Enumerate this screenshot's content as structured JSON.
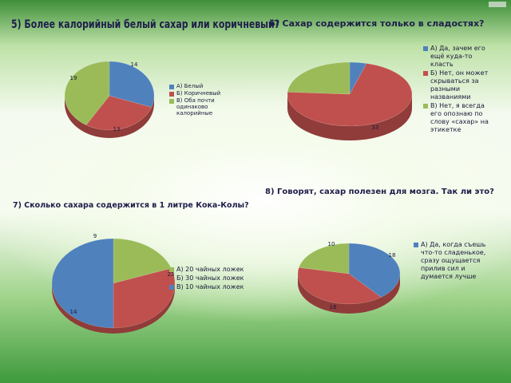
{
  "headings": {
    "q5": "5) Более калорийный белый сахар или коричневый?",
    "q6": "6) Сахар содержится только в сладостях?",
    "q7": "7) Сколько сахара содержится в 1 литре Кока-Колы?",
    "q8": "8) Говорят, сахар полезен для мозга. Так ли это?"
  },
  "colors": {
    "blue": "#4f81bd",
    "red": "#c0504d",
    "green": "#9bbb59"
  },
  "chart_data": [
    {
      "id": "q5",
      "type": "pie",
      "title": "5) Более калорийный белый сахар или коричневый?",
      "categories": [
        "А) Белый",
        "Б) Коричневый",
        "В) Оба почти одинаково калорийные"
      ],
      "values": [
        14,
        13,
        19
      ],
      "data_labels": [
        "14",
        "13",
        "19"
      ],
      "colors": [
        "#4f81bd",
        "#c0504d",
        "#9bbb59"
      ],
      "legend": "right"
    },
    {
      "id": "q6",
      "type": "pie",
      "title": "6) Сахар содержится только в сладостях?",
      "categories": [
        "А) Да, зачем его ещё куда-то класть",
        "Б) Нет, он может скрываться за разными названиями",
        "В) Нет, я всегда его опознаю по слову «сахар» на этикетке"
      ],
      "values": [
        2,
        33,
        11
      ],
      "data_labels": [
        "",
        "33",
        ""
      ],
      "colors": [
        "#4f81bd",
        "#c0504d",
        "#9bbb59"
      ],
      "legend": "right"
    },
    {
      "id": "q7",
      "type": "pie",
      "title": "7) Сколько сахара содержится в 1 литре Кока-Колы?",
      "categories": [
        "А) 20 чайных ложек",
        "Б) 30 чайных ложек",
        "В) 10 чайных ложек"
      ],
      "values": [
        9,
        14,
        23
      ],
      "data_labels": [
        "9",
        "14",
        "23"
      ],
      "colors": [
        "#9bbb59",
        "#c0504d",
        "#4f81bd"
      ],
      "legend": "right"
    },
    {
      "id": "q8",
      "type": "pie",
      "title": "8) Говорят, сахар полезен для мозга. Так ли это?",
      "categories": [
        "А) Да, когда съешь что-то сладенькое, сразу ощущается прилив сил и думается лучше",
        "",
        ""
      ],
      "values": [
        18,
        18,
        10
      ],
      "data_labels": [
        "18",
        "18",
        "10"
      ],
      "colors": [
        "#4f81bd",
        "#c0504d",
        "#9bbb59"
      ],
      "legend": "right"
    }
  ]
}
